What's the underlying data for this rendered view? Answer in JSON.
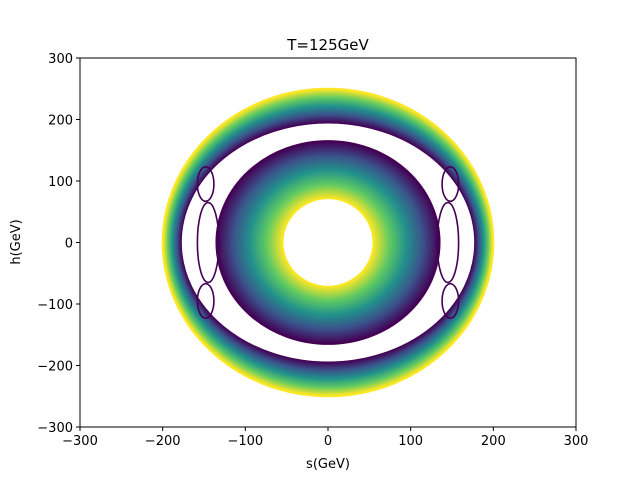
{
  "chart_data": {
    "type": "contour",
    "title": "T=125GeV",
    "xlabel": "s(GeV)",
    "ylabel": "h(GeV)",
    "xlim": [
      -300,
      300
    ],
    "ylim": [
      -300,
      300
    ],
    "x_ticks": [
      -300,
      -200,
      -100,
      0,
      100,
      200,
      300
    ],
    "y_ticks": [
      -300,
      -200,
      -100,
      0,
      100,
      200,
      300
    ],
    "x_tick_labels": [
      "−300",
      "−200",
      "−100",
      "0",
      "100",
      "200",
      "300"
    ],
    "y_tick_labels": [
      "−300",
      "−200",
      "−100",
      "0",
      "100",
      "200",
      "300"
    ],
    "grid": false,
    "legend": "none",
    "colormap": "viridis",
    "colormap_stops": [
      "#440154",
      "#3b528b",
      "#21918c",
      "#5ec962",
      "#fde725"
    ],
    "ring_outer": {
      "outer_radius_s": 200,
      "outer_radius_h": 250,
      "inner_radius_s": 178,
      "inner_radius_h": 195,
      "color_inner": "#440154",
      "color_outer": "#fde725"
    },
    "ring_inner": {
      "outer_radius_s": 135,
      "outer_radius_h": 165,
      "inner_radius_s": 55,
      "inner_radius_h": 72,
      "color_outer": "#440154",
      "color_inner": "#fde725"
    },
    "lobes": [
      {
        "center_s": 145,
        "center_h": 0,
        "half_width_s": 13,
        "half_height_h": 65
      },
      {
        "center_s": -145,
        "center_h": 0,
        "half_width_s": 13,
        "half_height_h": 65
      },
      {
        "center_s": 148,
        "center_h": 95,
        "half_width_s": 10,
        "half_height_h": 28
      },
      {
        "center_s": -148,
        "center_h": 95,
        "half_width_s": 10,
        "half_height_h": 28
      },
      {
        "center_s": 148,
        "center_h": -95,
        "half_width_s": 10,
        "half_height_h": 28
      },
      {
        "center_s": -148,
        "center_h": -95,
        "half_width_s": 10,
        "half_height_h": 28
      }
    ],
    "line_color": "#440154"
  }
}
